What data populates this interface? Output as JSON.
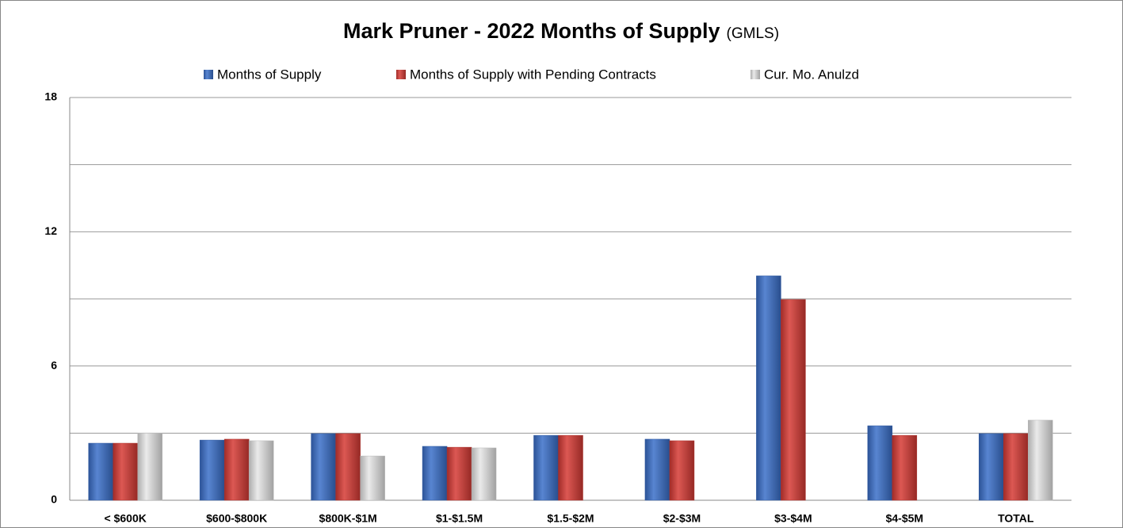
{
  "chart_data": {
    "type": "bar",
    "title": "Mark Pruner - 2022 Months of Supply",
    "subtitle": "(GMLS)",
    "categories": [
      "< $600K",
      "$600-$800K",
      "$800K-$1M",
      "$1-$1.5M",
      "$1.5-$2M",
      "$2-$3M",
      "$3-$4M",
      "$4-$5M",
      "TOTAL"
    ],
    "series": [
      {
        "name": "Months of Supply",
        "color": "#3a6fc9",
        "values": [
          2.55,
          2.69,
          2.98,
          2.41,
          2.9,
          2.73,
          10.03,
          3.33,
          2.98
        ]
      },
      {
        "name": "Months of Supply with Pending Contracts",
        "color": "#d63b35",
        "values": [
          2.55,
          2.73,
          2.98,
          2.37,
          2.9,
          2.66,
          8.97,
          2.9,
          2.98
        ]
      },
      {
        "name": "Cur. Mo. Anulzd",
        "color": "#e6e6e6",
        "values": [
          3.0,
          2.66,
          1.98,
          2.34,
          null,
          null,
          null,
          null,
          3.58
        ]
      }
    ],
    "ylim": [
      0,
      18
    ],
    "yticks": [
      0,
      6,
      12,
      18
    ],
    "minor_yticks": [
      3,
      9,
      15
    ],
    "grid": true,
    "legend": "top"
  }
}
